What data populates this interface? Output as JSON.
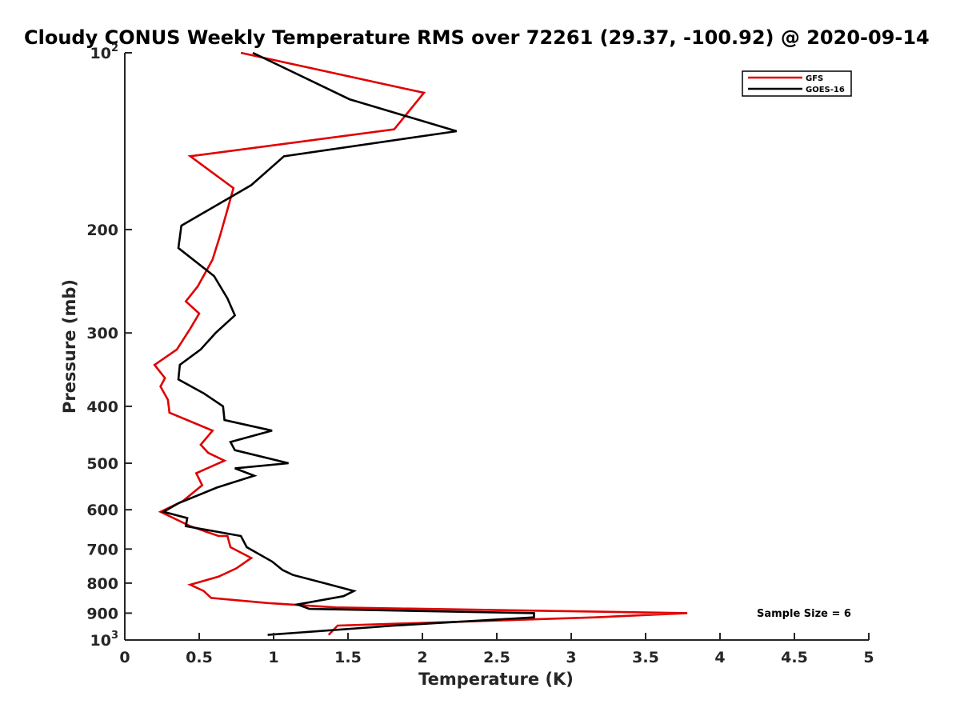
{
  "chart_data": {
    "type": "line",
    "title": "Cloudy CONUS Weekly Temperature RMS over 72261 (29.37, -100.92) @ 2020-09-14",
    "xlabel": "Temperature (K)",
    "ylabel": "Pressure (mb)",
    "xlim": [
      0,
      5
    ],
    "ylim": [
      100,
      1000
    ],
    "yscale": "log",
    "yreversed": true,
    "grid": false,
    "legend_position": "top-right",
    "annotation": "Sample Size = 6",
    "x_ticks": [
      "0",
      "0.5",
      "1",
      "1.5",
      "2",
      "2.5",
      "3",
      "3.5",
      "4",
      "4.5",
      "5"
    ],
    "y_ticks": [
      {
        "value": 100,
        "base": "10",
        "exp": "2"
      },
      {
        "value": 200,
        "label": "200"
      },
      {
        "value": 300,
        "label": "300"
      },
      {
        "value": 400,
        "label": "400"
      },
      {
        "value": 500,
        "label": "500"
      },
      {
        "value": 600,
        "label": "600"
      },
      {
        "value": 700,
        "label": "700"
      },
      {
        "value": 800,
        "label": "800"
      },
      {
        "value": 900,
        "label": "900"
      },
      {
        "value": 1000,
        "base": "10",
        "exp": "3"
      }
    ],
    "series": [
      {
        "name": "GFS",
        "color": "#e00000",
        "points": [
          [
            0.78,
            100
          ],
          [
            2.01,
            117
          ],
          [
            1.81,
            135
          ],
          [
            0.44,
            150
          ],
          [
            0.73,
            170
          ],
          [
            0.69,
            185
          ],
          [
            0.64,
            205
          ],
          [
            0.59,
            225
          ],
          [
            0.49,
            250
          ],
          [
            0.41,
            265
          ],
          [
            0.5,
            278
          ],
          [
            0.44,
            295
          ],
          [
            0.35,
            320
          ],
          [
            0.2,
            340
          ],
          [
            0.27,
            358
          ],
          [
            0.24,
            370
          ],
          [
            0.29,
            390
          ],
          [
            0.3,
            410
          ],
          [
            0.59,
            440
          ],
          [
            0.51,
            465
          ],
          [
            0.56,
            480
          ],
          [
            0.67,
            495
          ],
          [
            0.48,
            520
          ],
          [
            0.52,
            545
          ],
          [
            0.39,
            580
          ],
          [
            0.24,
            605
          ],
          [
            0.44,
            640
          ],
          [
            0.63,
            665
          ],
          [
            0.69,
            665
          ],
          [
            0.71,
            695
          ],
          [
            0.85,
            725
          ],
          [
            0.75,
            755
          ],
          [
            0.63,
            780
          ],
          [
            0.44,
            805
          ],
          [
            0.53,
            825
          ],
          [
            0.58,
            848
          ],
          [
            0.96,
            865
          ],
          [
            1.42,
            880
          ],
          [
            3.78,
            900
          ],
          [
            3.16,
            915
          ],
          [
            1.43,
            945
          ],
          [
            1.37,
            980
          ]
        ]
      },
      {
        "name": "GOES-16",
        "color": "#000000",
        "points": [
          [
            0.86,
            100
          ],
          [
            1.51,
            120
          ],
          [
            2.23,
            136
          ],
          [
            1.07,
            150
          ],
          [
            0.85,
            168
          ],
          [
            0.38,
            197
          ],
          [
            0.36,
            215
          ],
          [
            0.6,
            240
          ],
          [
            0.69,
            262
          ],
          [
            0.74,
            280
          ],
          [
            0.61,
            300
          ],
          [
            0.51,
            320
          ],
          [
            0.37,
            340
          ],
          [
            0.36,
            360
          ],
          [
            0.53,
            380
          ],
          [
            0.66,
            400
          ],
          [
            0.67,
            422
          ],
          [
            0.99,
            440
          ],
          [
            0.71,
            460
          ],
          [
            0.74,
            475
          ],
          [
            1.1,
            500
          ],
          [
            0.74,
            510
          ],
          [
            0.87,
            525
          ],
          [
            0.62,
            550
          ],
          [
            0.36,
            585
          ],
          [
            0.26,
            605
          ],
          [
            0.42,
            620
          ],
          [
            0.41,
            640
          ],
          [
            0.78,
            665
          ],
          [
            0.82,
            695
          ],
          [
            0.99,
            735
          ],
          [
            1.06,
            760
          ],
          [
            1.13,
            775
          ],
          [
            1.34,
            800
          ],
          [
            1.54,
            825
          ],
          [
            1.47,
            842
          ],
          [
            1.16,
            870
          ],
          [
            1.24,
            885
          ],
          [
            2.75,
            900
          ],
          [
            2.75,
            915
          ],
          [
            1.81,
            945
          ],
          [
            0.96,
            980
          ]
        ]
      }
    ]
  }
}
